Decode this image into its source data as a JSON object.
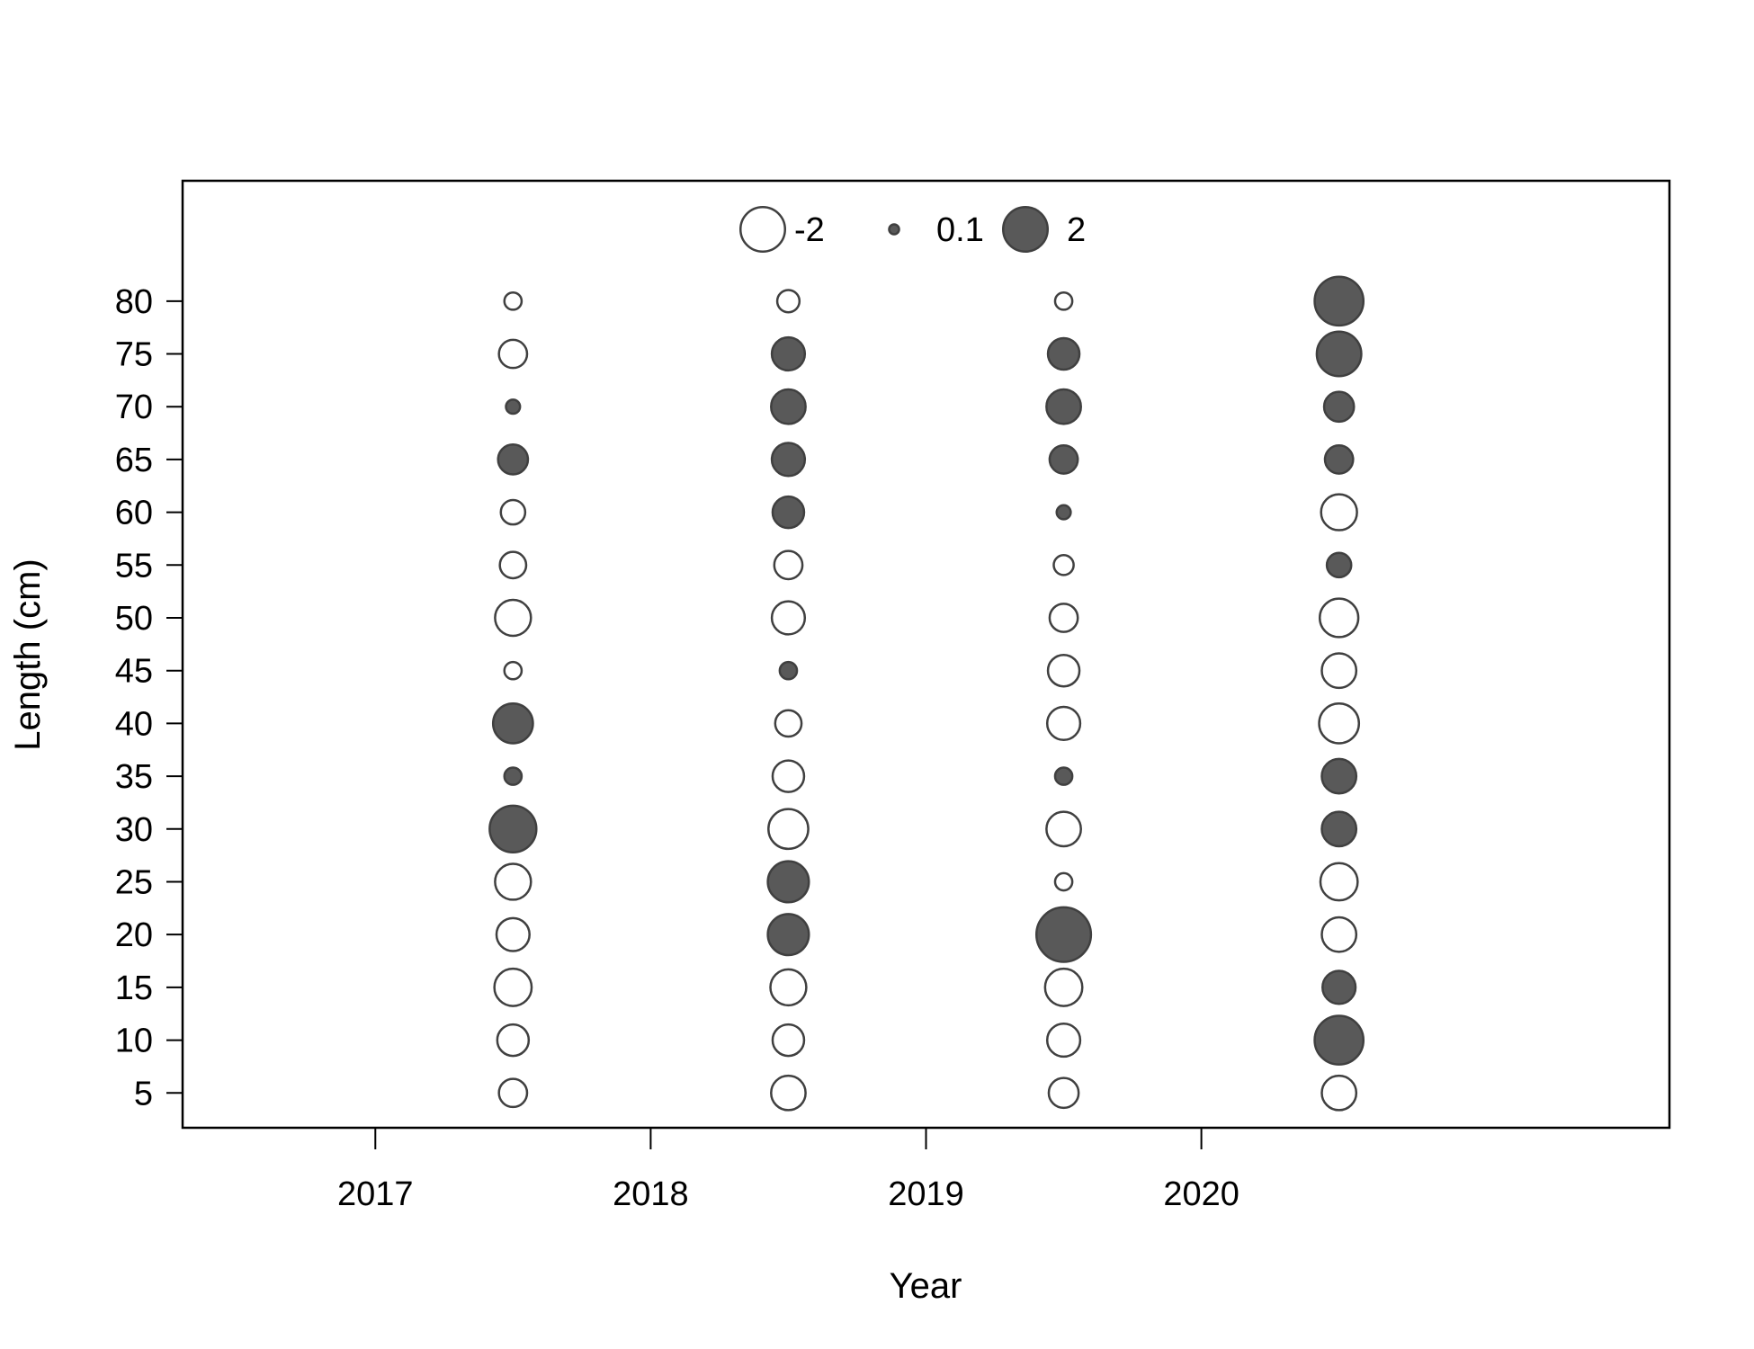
{
  "chart_data": {
    "type": "scatter",
    "subtype": "bubble",
    "title": "",
    "xlabel": "Year",
    "ylabel": "Length (cm)",
    "x_ticks": [
      2017,
      2018,
      2019,
      2020
    ],
    "xlim": [
      2016.3,
      2021.7
    ],
    "y_ticks": [
      5,
      10,
      15,
      20,
      25,
      30,
      35,
      40,
      45,
      50,
      55,
      60,
      65,
      70,
      75,
      80
    ],
    "ylim": [
      1.7,
      91.4
    ],
    "bubble_x": [
      2017.5,
      2018.5,
      2019.5,
      2020.5
    ],
    "size_scale": "abs(value)",
    "negative_style": "open circle",
    "positive_style": "filled circle",
    "colors": {
      "positive_fill": "#595959",
      "stroke": "#404040",
      "negative_fill": "#ffffff"
    },
    "legend": {
      "position": "top-center",
      "entries": [
        {
          "label": "-2",
          "value": -2
        },
        {
          "label": "0.1",
          "value": 0.1
        },
        {
          "label": "2",
          "value": 2
        }
      ]
    },
    "series": [
      {
        "year": 2017,
        "x": 2017.5,
        "lengths": [
          5,
          10,
          15,
          20,
          25,
          30,
          35,
          40,
          45,
          50,
          55,
          60,
          65,
          70,
          75,
          80
        ],
        "values": [
          -0.8,
          -1.0,
          -1.4,
          -1.1,
          -1.3,
          2.2,
          0.3,
          1.6,
          -0.3,
          -1.3,
          -0.7,
          -0.6,
          0.9,
          0.2,
          -0.8,
          -0.3
        ]
      },
      {
        "year": 2018,
        "x": 2018.5,
        "lengths": [
          5,
          10,
          15,
          20,
          25,
          30,
          35,
          40,
          45,
          50,
          55,
          60,
          65,
          70,
          75,
          80
        ],
        "values": [
          -1.2,
          -1.0,
          -1.3,
          1.7,
          1.7,
          -1.6,
          -1.0,
          -0.7,
          0.3,
          -1.1,
          -0.8,
          1.0,
          1.1,
          1.2,
          1.1,
          -0.5
        ]
      },
      {
        "year": 2019,
        "x": 2019.5,
        "lengths": [
          5,
          10,
          15,
          20,
          25,
          30,
          35,
          40,
          45,
          50,
          55,
          60,
          65,
          70,
          75,
          80
        ],
        "values": [
          -0.9,
          -1.1,
          -1.4,
          3.0,
          -0.3,
          -1.2,
          0.3,
          -1.1,
          -1.0,
          -0.8,
          -0.4,
          0.2,
          0.8,
          1.2,
          1.0,
          -0.3
        ]
      },
      {
        "year": 2020,
        "x": 2020.5,
        "lengths": [
          5,
          10,
          15,
          20,
          25,
          30,
          35,
          40,
          45,
          50,
          55,
          60,
          65,
          70,
          75,
          80
        ],
        "values": [
          -1.2,
          2.4,
          1.1,
          -1.2,
          -1.4,
          1.2,
          1.2,
          -1.6,
          -1.2,
          -1.5,
          0.6,
          -1.3,
          0.8,
          0.9,
          2.0,
          2.4
        ]
      }
    ]
  }
}
